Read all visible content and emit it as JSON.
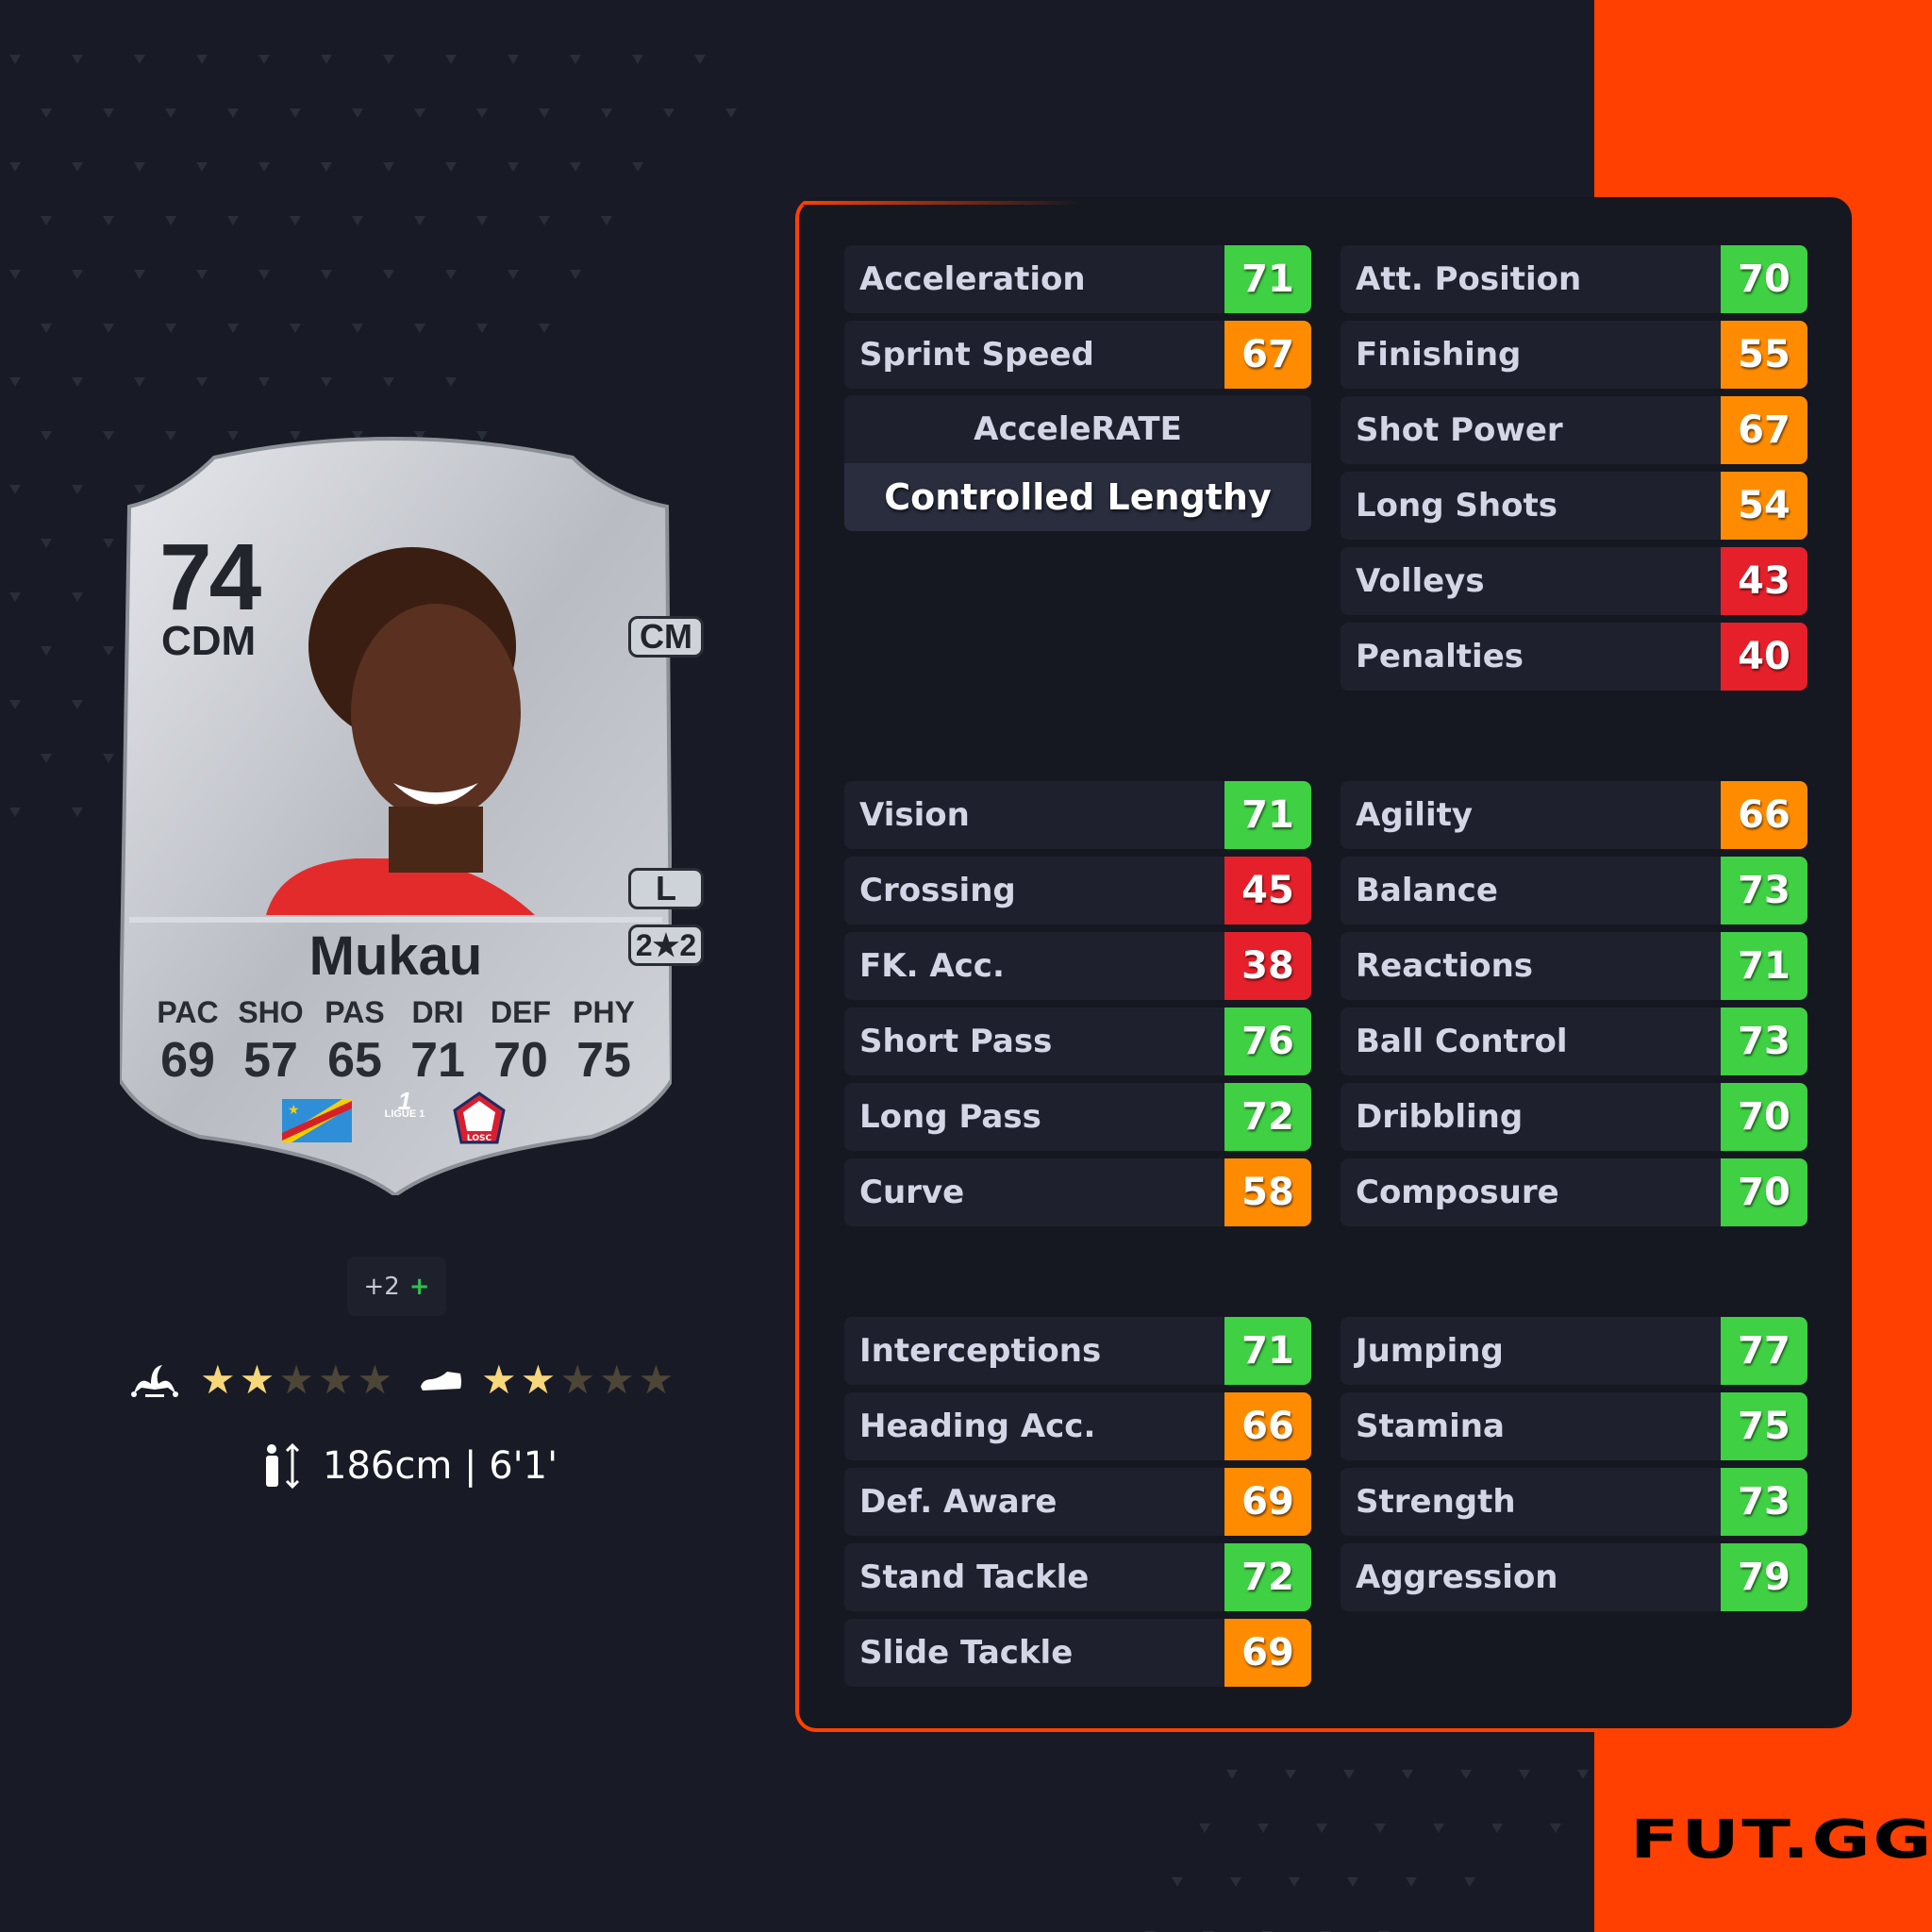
{
  "brand": {
    "logo": "FUT.GG",
    "accent": "#ff4000"
  },
  "card": {
    "rating": "74",
    "position": "CDM",
    "alt_position": "CM",
    "foot": "L",
    "work_rates": "2★2",
    "name": "Mukau",
    "stats": [
      {
        "label": "PAC",
        "value": "69"
      },
      {
        "label": "SHO",
        "value": "57"
      },
      {
        "label": "PAS",
        "value": "65"
      },
      {
        "label": "DRI",
        "value": "71"
      },
      {
        "label": "DEF",
        "value": "70"
      },
      {
        "label": "PHY",
        "value": "75"
      }
    ],
    "league_logo": "LIGUE 1",
    "club_logo": "LOSC",
    "nation": "DR Congo flag"
  },
  "extra_positions": {
    "label": "+2",
    "icon": "+"
  },
  "skill_moves": {
    "icon": "jester-hat-icon",
    "stars": 2,
    "max": 5
  },
  "weak_foot": {
    "icon": "boot-icon",
    "stars": 2,
    "max": 5
  },
  "height": {
    "icon": "person-height-icon",
    "text": "186cm | 6'1'"
  },
  "colors": {
    "green": "#3fd043",
    "orange": "#ff8c00",
    "red": "#e5202a"
  },
  "groups": [
    {
      "left": [
        {
          "label": "Acceleration",
          "value": "71",
          "color": "green"
        },
        {
          "label": "Sprint Speed",
          "value": "67",
          "color": "orange"
        }
      ],
      "right": [
        {
          "label": "Att. Position",
          "value": "70",
          "color": "green"
        },
        {
          "label": "Finishing",
          "value": "55",
          "color": "orange"
        },
        {
          "label": "Shot Power",
          "value": "67",
          "color": "orange"
        },
        {
          "label": "Long Shots",
          "value": "54",
          "color": "orange"
        },
        {
          "label": "Volleys",
          "value": "43",
          "color": "red"
        },
        {
          "label": "Penalties",
          "value": "40",
          "color": "red"
        }
      ]
    },
    {
      "left": [
        {
          "label": "Vision",
          "value": "71",
          "color": "green"
        },
        {
          "label": "Crossing",
          "value": "45",
          "color": "red"
        },
        {
          "label": "FK. Acc.",
          "value": "38",
          "color": "red"
        },
        {
          "label": "Short Pass",
          "value": "76",
          "color": "green"
        },
        {
          "label": "Long Pass",
          "value": "72",
          "color": "green"
        },
        {
          "label": "Curve",
          "value": "58",
          "color": "orange"
        }
      ],
      "right": [
        {
          "label": "Agility",
          "value": "66",
          "color": "orange"
        },
        {
          "label": "Balance",
          "value": "73",
          "color": "green"
        },
        {
          "label": "Reactions",
          "value": "71",
          "color": "green"
        },
        {
          "label": "Ball Control",
          "value": "73",
          "color": "green"
        },
        {
          "label": "Dribbling",
          "value": "70",
          "color": "green"
        },
        {
          "label": "Composure",
          "value": "70",
          "color": "green"
        }
      ]
    },
    {
      "left": [
        {
          "label": "Interceptions",
          "value": "71",
          "color": "green"
        },
        {
          "label": "Heading Acc.",
          "value": "66",
          "color": "orange"
        },
        {
          "label": "Def. Aware",
          "value": "69",
          "color": "orange"
        },
        {
          "label": "Stand Tackle",
          "value": "72",
          "color": "green"
        },
        {
          "label": "Slide Tackle",
          "value": "69",
          "color": "orange"
        }
      ],
      "right": [
        {
          "label": "Jumping",
          "value": "77",
          "color": "green"
        },
        {
          "label": "Stamina",
          "value": "75",
          "color": "green"
        },
        {
          "label": "Strength",
          "value": "73",
          "color": "green"
        },
        {
          "label": "Aggression",
          "value": "79",
          "color": "green"
        }
      ]
    }
  ],
  "accelerate": {
    "label": "AcceleRATE",
    "value": "Controlled Lengthy"
  }
}
